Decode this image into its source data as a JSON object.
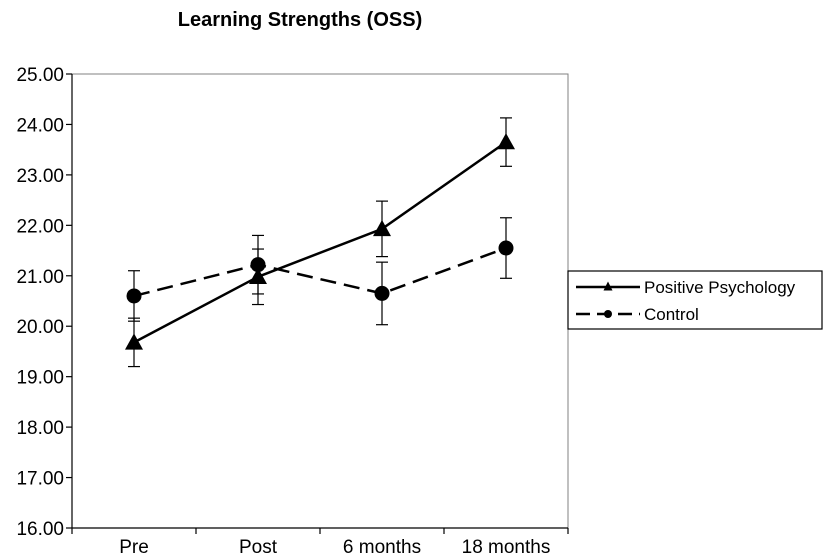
{
  "chart_data": {
    "type": "line",
    "title": "Learning Strengths (OSS)",
    "xlabel": "",
    "ylabel": "",
    "categories": [
      "Pre",
      "Post",
      "6 months",
      "18 months"
    ],
    "ylim": [
      16.0,
      25.0
    ],
    "yticks": [
      "16.00",
      "17.00",
      "18.00",
      "19.00",
      "20.00",
      "21.00",
      "22.00",
      "23.00",
      "24.00",
      "25.00"
    ],
    "grid": false,
    "legend_position": "right",
    "series": [
      {
        "name": "Positive Psychology",
        "values": [
          19.68,
          20.98,
          21.93,
          23.65
        ],
        "error": [
          0.48,
          0.55,
          0.55,
          0.48
        ],
        "marker": "triangle",
        "line_style": "solid",
        "color": "#000000"
      },
      {
        "name": "Control",
        "values": [
          20.6,
          21.22,
          20.65,
          21.55
        ],
        "error": [
          0.5,
          0.58,
          0.62,
          0.6
        ],
        "marker": "circle",
        "line_style": "dashed",
        "color": "#000000"
      }
    ]
  }
}
